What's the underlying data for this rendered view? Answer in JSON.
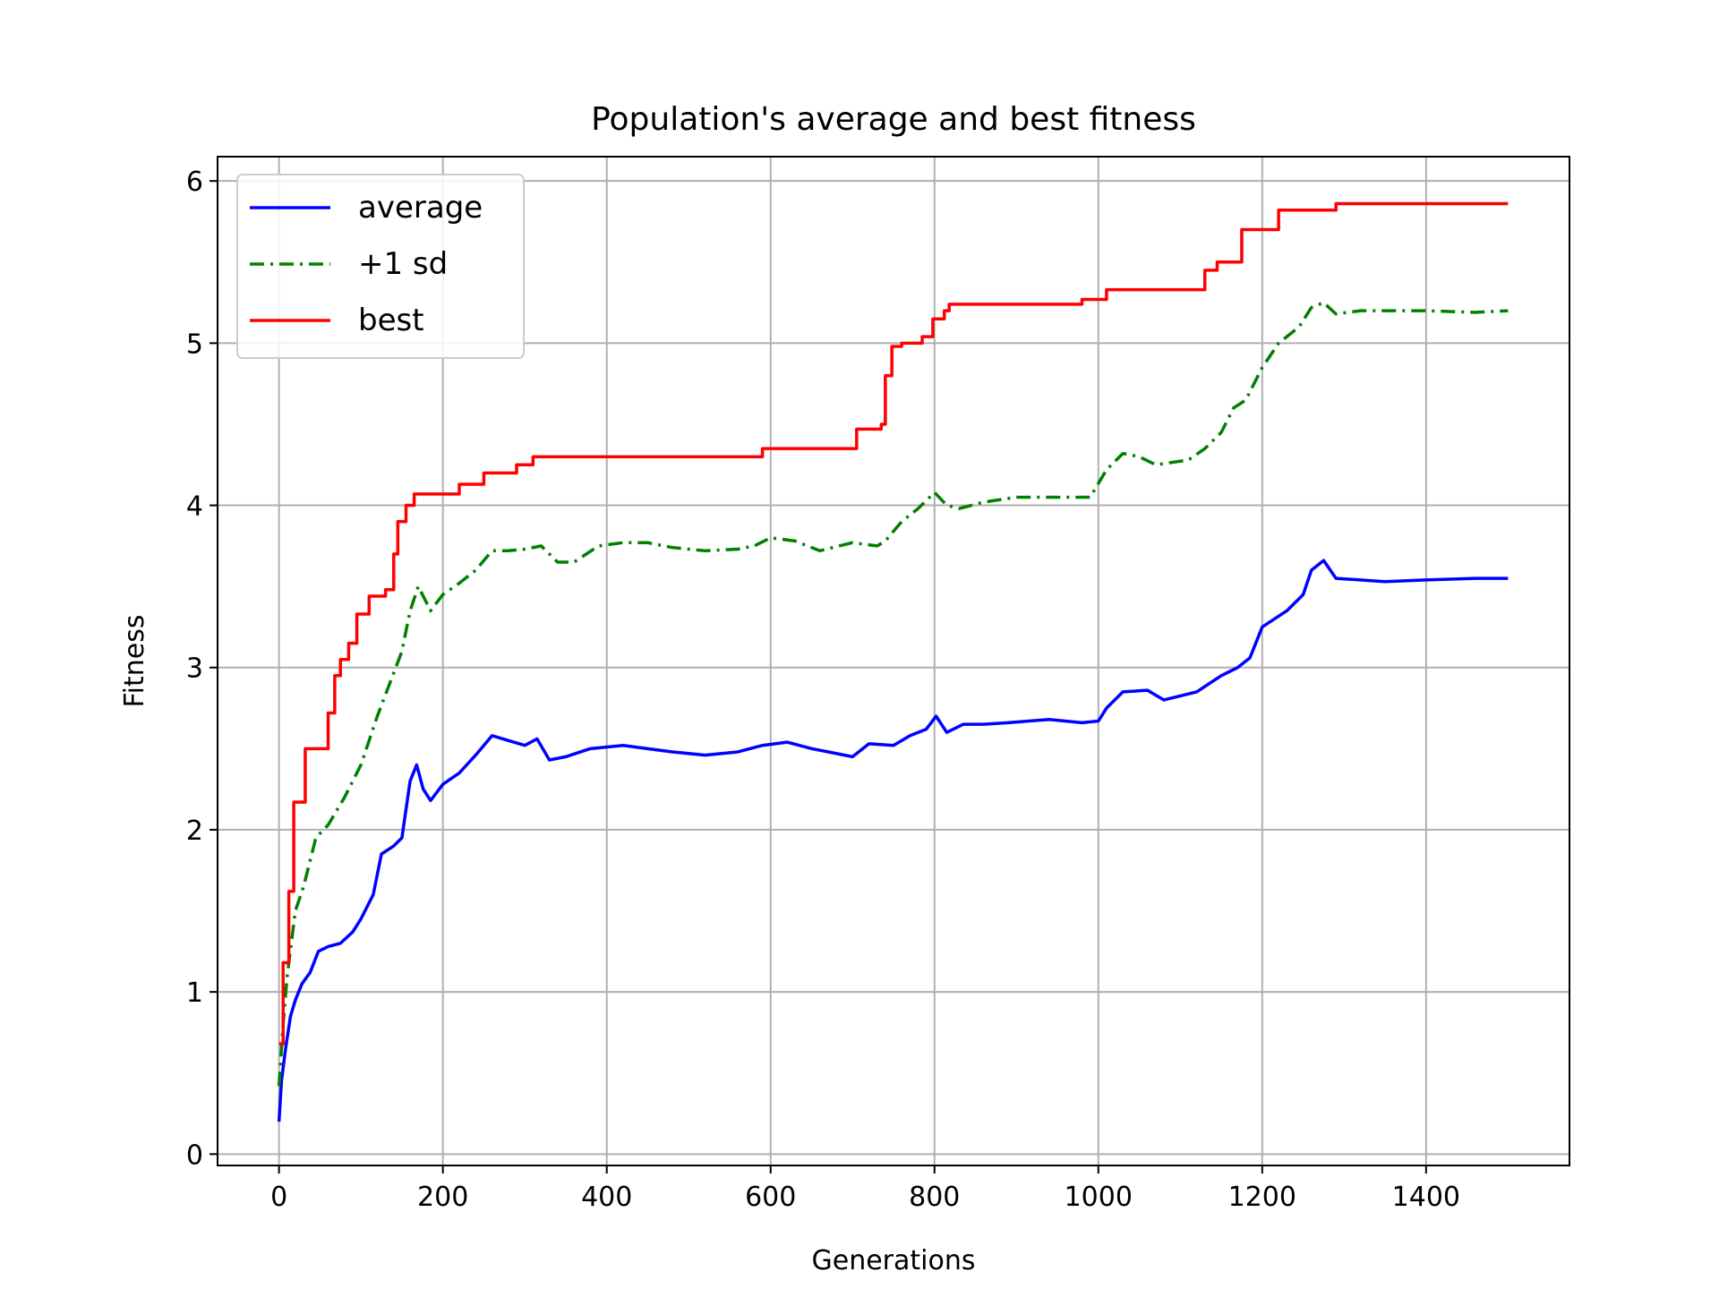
{
  "chart_data": {
    "type": "line",
    "title": "Population's average and best fitness",
    "xlabel": "Generations",
    "ylabel": "Fitness",
    "xlim": [
      -75,
      1575
    ],
    "ylim": [
      -0.07,
      6.15
    ],
    "xticks": [
      0,
      200,
      400,
      600,
      800,
      1000,
      1200,
      1400
    ],
    "yticks": [
      0,
      1,
      2,
      3,
      4,
      5,
      6
    ],
    "grid": true,
    "legend_position": "upper-left",
    "series": [
      {
        "name": "average",
        "color": "#0000ff",
        "style": "solid",
        "points": [
          [
            0,
            0.2
          ],
          [
            3,
            0.45
          ],
          [
            8,
            0.65
          ],
          [
            14,
            0.85
          ],
          [
            20,
            0.95
          ],
          [
            28,
            1.05
          ],
          [
            38,
            1.12
          ],
          [
            48,
            1.25
          ],
          [
            60,
            1.28
          ],
          [
            75,
            1.3
          ],
          [
            90,
            1.37
          ],
          [
            100,
            1.45
          ],
          [
            115,
            1.6
          ],
          [
            125,
            1.85
          ],
          [
            140,
            1.9
          ],
          [
            150,
            1.95
          ],
          [
            160,
            2.3
          ],
          [
            168,
            2.4
          ],
          [
            176,
            2.25
          ],
          [
            185,
            2.18
          ],
          [
            200,
            2.28
          ],
          [
            220,
            2.35
          ],
          [
            240,
            2.46
          ],
          [
            260,
            2.58
          ],
          [
            280,
            2.55
          ],
          [
            300,
            2.52
          ],
          [
            315,
            2.56
          ],
          [
            330,
            2.43
          ],
          [
            350,
            2.45
          ],
          [
            380,
            2.5
          ],
          [
            420,
            2.52
          ],
          [
            450,
            2.5
          ],
          [
            480,
            2.48
          ],
          [
            520,
            2.46
          ],
          [
            560,
            2.48
          ],
          [
            590,
            2.52
          ],
          [
            620,
            2.54
          ],
          [
            650,
            2.5
          ],
          [
            680,
            2.47
          ],
          [
            700,
            2.45
          ],
          [
            720,
            2.53
          ],
          [
            750,
            2.52
          ],
          [
            770,
            2.58
          ],
          [
            790,
            2.62
          ],
          [
            802,
            2.7
          ],
          [
            815,
            2.6
          ],
          [
            835,
            2.65
          ],
          [
            860,
            2.65
          ],
          [
            890,
            2.66
          ],
          [
            940,
            2.68
          ],
          [
            980,
            2.66
          ],
          [
            1000,
            2.67
          ],
          [
            1010,
            2.75
          ],
          [
            1030,
            2.85
          ],
          [
            1060,
            2.86
          ],
          [
            1080,
            2.8
          ],
          [
            1120,
            2.85
          ],
          [
            1150,
            2.95
          ],
          [
            1170,
            3.0
          ],
          [
            1185,
            3.06
          ],
          [
            1200,
            3.25
          ],
          [
            1230,
            3.35
          ],
          [
            1250,
            3.45
          ],
          [
            1260,
            3.6
          ],
          [
            1275,
            3.66
          ],
          [
            1290,
            3.55
          ],
          [
            1320,
            3.54
          ],
          [
            1350,
            3.53
          ],
          [
            1400,
            3.54
          ],
          [
            1460,
            3.55
          ],
          [
            1500,
            3.55
          ]
        ]
      },
      {
        "name": "+1 sd",
        "color": "#008000",
        "style": "dashdot",
        "points": [
          [
            0,
            0.42
          ],
          [
            5,
            0.8
          ],
          [
            10,
            1.1
          ],
          [
            20,
            1.5
          ],
          [
            30,
            1.65
          ],
          [
            45,
            1.95
          ],
          [
            60,
            2.03
          ],
          [
            80,
            2.2
          ],
          [
            100,
            2.4
          ],
          [
            120,
            2.7
          ],
          [
            135,
            2.9
          ],
          [
            150,
            3.1
          ],
          [
            160,
            3.35
          ],
          [
            170,
            3.5
          ],
          [
            185,
            3.35
          ],
          [
            200,
            3.45
          ],
          [
            220,
            3.52
          ],
          [
            240,
            3.6
          ],
          [
            260,
            3.72
          ],
          [
            280,
            3.72
          ],
          [
            300,
            3.73
          ],
          [
            320,
            3.75
          ],
          [
            340,
            3.65
          ],
          [
            360,
            3.65
          ],
          [
            390,
            3.75
          ],
          [
            420,
            3.77
          ],
          [
            450,
            3.77
          ],
          [
            480,
            3.74
          ],
          [
            520,
            3.72
          ],
          [
            560,
            3.73
          ],
          [
            580,
            3.75
          ],
          [
            600,
            3.8
          ],
          [
            630,
            3.78
          ],
          [
            660,
            3.72
          ],
          [
            700,
            3.77
          ],
          [
            730,
            3.75
          ],
          [
            740,
            3.78
          ],
          [
            760,
            3.9
          ],
          [
            780,
            3.98
          ],
          [
            800,
            4.08
          ],
          [
            815,
            4.0
          ],
          [
            830,
            3.98
          ],
          [
            860,
            4.02
          ],
          [
            900,
            4.05
          ],
          [
            950,
            4.05
          ],
          [
            990,
            4.05
          ],
          [
            1010,
            4.22
          ],
          [
            1030,
            4.32
          ],
          [
            1050,
            4.3
          ],
          [
            1070,
            4.25
          ],
          [
            1110,
            4.28
          ],
          [
            1130,
            4.35
          ],
          [
            1150,
            4.45
          ],
          [
            1165,
            4.6
          ],
          [
            1180,
            4.65
          ],
          [
            1200,
            4.85
          ],
          [
            1220,
            5.0
          ],
          [
            1245,
            5.1
          ],
          [
            1260,
            5.22
          ],
          [
            1275,
            5.25
          ],
          [
            1290,
            5.18
          ],
          [
            1320,
            5.2
          ],
          [
            1350,
            5.2
          ],
          [
            1400,
            5.2
          ],
          [
            1460,
            5.19
          ],
          [
            1500,
            5.2
          ]
        ]
      },
      {
        "name": "best",
        "color": "#ff0000",
        "style": "steps",
        "points": [
          [
            0,
            0.68
          ],
          [
            5,
            1.18
          ],
          [
            12,
            1.62
          ],
          [
            18,
            2.17
          ],
          [
            32,
            2.5
          ],
          [
            60,
            2.72
          ],
          [
            68,
            2.95
          ],
          [
            75,
            3.05
          ],
          [
            85,
            3.15
          ],
          [
            95,
            3.33
          ],
          [
            110,
            3.44
          ],
          [
            130,
            3.48
          ],
          [
            140,
            3.7
          ],
          [
            145,
            3.9
          ],
          [
            155,
            4.0
          ],
          [
            165,
            4.07
          ],
          [
            220,
            4.13
          ],
          [
            250,
            4.2
          ],
          [
            290,
            4.25
          ],
          [
            310,
            4.3
          ],
          [
            590,
            4.35
          ],
          [
            670,
            4.35
          ],
          [
            705,
            4.47
          ],
          [
            735,
            4.5
          ],
          [
            740,
            4.8
          ],
          [
            748,
            4.98
          ],
          [
            760,
            5.0
          ],
          [
            785,
            5.04
          ],
          [
            798,
            5.15
          ],
          [
            812,
            5.2
          ],
          [
            818,
            5.24
          ],
          [
            980,
            5.27
          ],
          [
            1010,
            5.33
          ],
          [
            1130,
            5.45
          ],
          [
            1145,
            5.5
          ],
          [
            1175,
            5.7
          ],
          [
            1220,
            5.82
          ],
          [
            1290,
            5.86
          ],
          [
            1500,
            5.86
          ]
        ]
      }
    ]
  }
}
